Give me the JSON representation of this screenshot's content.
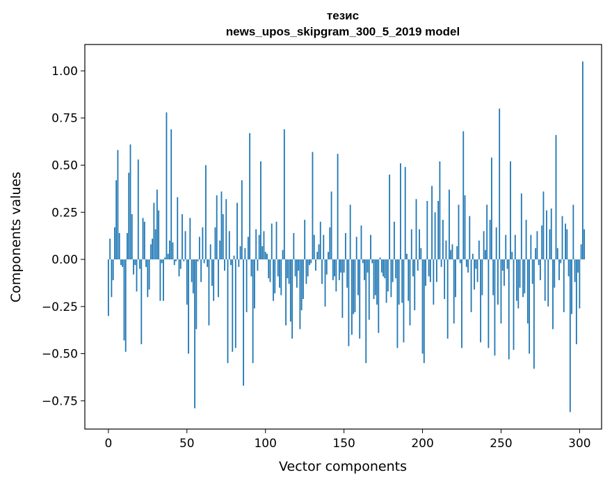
{
  "chart_data": {
    "type": "bar",
    "title": "тезис",
    "subtitle": "news_upos_skipgram_300_5_2019 model",
    "xlabel": "Vector components",
    "ylabel": "Components values",
    "xlim": [
      -15,
      314
    ],
    "ylim": [
      -0.9,
      1.14
    ],
    "grid": false,
    "legend": null,
    "color": "#1f77b4",
    "xticks": [
      0,
      50,
      100,
      150,
      200,
      250,
      300
    ],
    "xtick_labels": [
      "0",
      "50",
      "100",
      "150",
      "200",
      "250",
      "300"
    ],
    "yticks": [
      -0.75,
      -0.5,
      -0.25,
      0.0,
      0.25,
      0.5,
      0.75,
      1.0
    ],
    "ytick_labels": [
      "−0.75",
      "−0.50",
      "−0.25",
      "0.00",
      "0.25",
      "0.50",
      "0.75",
      "1.00"
    ],
    "values": [
      -0.3,
      0.11,
      -0.2,
      -0.11,
      0.17,
      0.42,
      0.58,
      0.14,
      -0.03,
      -0.04,
      -0.43,
      -0.49,
      0.14,
      0.46,
      0.61,
      0.24,
      -0.08,
      -0.03,
      -0.17,
      0.53,
      -0.05,
      -0.45,
      0.22,
      0.2,
      -0.04,
      -0.2,
      -0.16,
      0.08,
      0.11,
      0.3,
      0.16,
      0.37,
      0.26,
      -0.22,
      -0.02,
      -0.22,
      0.01,
      0.78,
      0.03,
      0.1,
      0.69,
      0.09,
      -0.03,
      -0.01,
      0.33,
      -0.09,
      -0.05,
      0.24,
      -0.01,
      0.15,
      -0.24,
      -0.5,
      0.22,
      -0.12,
      -0.18,
      -0.79,
      -0.37,
      -0.01,
      0.12,
      -0.12,
      0.17,
      -0.02,
      0.5,
      -0.04,
      -0.35,
      0.08,
      -0.14,
      -0.22,
      0.17,
      0.34,
      -0.2,
      0.1,
      0.36,
      0.24,
      -0.06,
      0.32,
      -0.55,
      0.15,
      -0.03,
      -0.49,
      0.02,
      -0.47,
      0.3,
      -0.04,
      0.07,
      0.42,
      -0.67,
      0.06,
      -0.28,
      0.12,
      0.67,
      -0.09,
      -0.55,
      -0.26,
      0.16,
      -0.06,
      0.13,
      0.52,
      0.07,
      0.15,
      0.04,
      0.03,
      -0.1,
      -0.12,
      0.19,
      -0.22,
      -0.18,
      0.2,
      -0.09,
      -0.15,
      -0.19,
      0.05,
      0.69,
      -0.35,
      -0.1,
      -0.13,
      -0.33,
      -0.42,
      0.14,
      -0.09,
      -0.15,
      -0.06,
      -0.37,
      -0.27,
      -0.21,
      0.21,
      -0.13,
      -0.09,
      -0.03,
      -0.02,
      0.57,
      0.13,
      -0.06,
      0.04,
      0.08,
      0.2,
      -0.13,
      0.13,
      -0.25,
      -0.08,
      0.04,
      0.17,
      0.36,
      -0.11,
      -0.09,
      -0.17,
      0.56,
      -0.11,
      -0.07,
      -0.31,
      -0.07,
      0.14,
      -0.15,
      -0.46,
      0.29,
      -0.4,
      -0.29,
      -0.28,
      0.12,
      -0.19,
      -0.42,
      0.18,
      -0.02,
      -0.11,
      -0.55,
      -0.07,
      -0.32,
      0.13,
      -0.02,
      -0.21,
      -0.19,
      -0.24,
      -0.39,
      0.01,
      -0.07,
      -0.09,
      -0.1,
      -0.23,
      -0.17,
      0.45,
      -0.2,
      -0.12,
      0.2,
      -0.1,
      -0.47,
      -0.24,
      0.51,
      -0.23,
      -0.44,
      0.49,
      0.03,
      -0.22,
      -0.35,
      0.16,
      -0.09,
      -0.27,
      0.32,
      -0.06,
      0.16,
      0.06,
      -0.5,
      -0.55,
      -0.14,
      0.31,
      -0.09,
      -0.12,
      0.39,
      -0.24,
      0.25,
      -0.12,
      0.31,
      0.52,
      -0.04,
      0.21,
      -0.21,
      0.1,
      -0.42,
      0.37,
      0.05,
      0.08,
      -0.34,
      -0.2,
      0.07,
      0.29,
      -0.02,
      -0.47,
      0.68,
      0.34,
      -0.04,
      -0.07,
      0.23,
      -0.28,
      0.03,
      -0.16,
      -0.05,
      -0.12,
      0.1,
      -0.44,
      -0.19,
      0.15,
      0.05,
      0.29,
      -0.47,
      0.21,
      0.54,
      -0.19,
      -0.51,
      0.17,
      -0.24,
      0.8,
      -0.34,
      -0.06,
      -0.14,
      0.13,
      -0.05,
      -0.53,
      0.52,
      0.04,
      -0.48,
      0.13,
      -0.22,
      -0.26,
      -0.15,
      0.35,
      -0.2,
      -0.18,
      0.21,
      -0.34,
      -0.5,
      0.13,
      -0.13,
      -0.58,
      0.06,
      0.15,
      -0.03,
      -0.11,
      0.18,
      0.36,
      -0.22,
      0.26,
      -0.25,
      0.16,
      0.27,
      -0.37,
      -0.15,
      0.66,
      0.06,
      -0.11,
      -0.02,
      0.23,
      -0.28,
      0.19,
      0.16,
      -0.09,
      -0.81,
      -0.29,
      0.29,
      -0.12,
      -0.45,
      -0.07
    ],
    "extra_tail_values": [
      -0.26,
      0.08,
      1.05,
      0.16
    ]
  }
}
